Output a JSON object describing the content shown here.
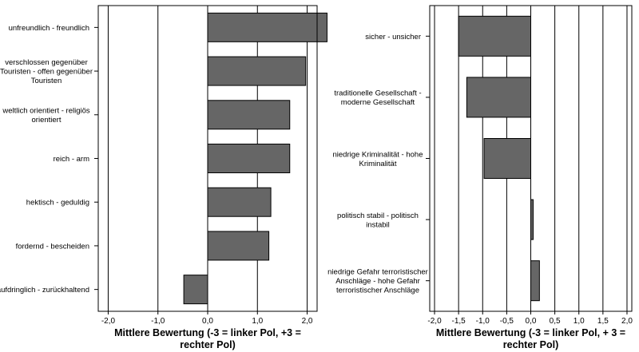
{
  "chart_data": [
    {
      "type": "bar",
      "orientation": "horizontal",
      "categories": [
        [
          "unfreundlich - freundlich"
        ],
        [
          "verschlossen gegenüber",
          "Touristen - offen gegenüber",
          "Touristen"
        ],
        [
          "weltlich orientiert - religiös",
          "orientiert"
        ],
        [
          "reich -  arm"
        ],
        [
          "hektisch -  geduldig"
        ],
        [
          "fordernd -  bescheiden"
        ],
        [
          "aufdringlich - zurückhaltend"
        ]
      ],
      "values": [
        2.4,
        1.97,
        1.65,
        1.65,
        1.27,
        1.23,
        -0.48
      ],
      "xlim": [
        -2.2,
        2.2
      ],
      "ticks": [
        "-2,0",
        "-1,0",
        "0,0",
        "1,0",
        "2,0"
      ],
      "tick_values": [
        -2,
        -1,
        0,
        1,
        2
      ],
      "xlabel": [
        "Mittlere Bewertung (-3 = linker Pol, +3 =",
        "rechter Pol)"
      ],
      "grid": true,
      "bar_color": "#666666"
    },
    {
      "type": "bar",
      "orientation": "horizontal",
      "categories": [
        [
          "sicher - unsicher"
        ],
        [
          "traditionelle Gesellschaft  -",
          "moderne Gesellschaft"
        ],
        [
          "niedrige Kriminalität - hohe",
          "Kriminalität"
        ],
        [
          "politisch stabil - politisch",
          "instabil"
        ],
        [
          "niedrige Gefahr terroristischer",
          "Anschläge - hohe Gefahr",
          "terroristischer Anschläge"
        ]
      ],
      "values": [
        -1.5,
        -1.33,
        -0.97,
        0.05,
        0.18
      ],
      "xlim": [
        -2.1,
        2.1
      ],
      "ticks": [
        "-2,0",
        "-1,5",
        "-1,0",
        "-0,5",
        "0,0",
        "0,5",
        "1,0",
        "1,5",
        "2,0"
      ],
      "tick_values": [
        -2,
        -1.5,
        -1,
        -0.5,
        0,
        0.5,
        1,
        1.5,
        2
      ],
      "xlabel": [
        "Mittlere Bewertung (-3 = linker Pol, + 3 =",
        "rechter Pol)"
      ],
      "grid": true,
      "bar_color": "#666666"
    }
  ]
}
